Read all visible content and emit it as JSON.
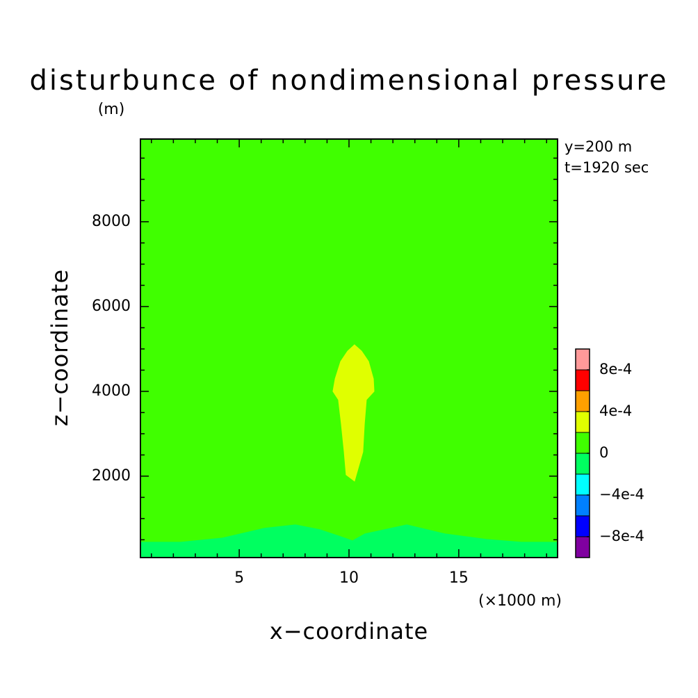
{
  "chart_data": {
    "type": "contour",
    "title": "disturbunce of nondimensional pressure",
    "y_unit": "(m)",
    "x_unit": "(×1000 m)",
    "xlabel": "x−coordinate",
    "ylabel": "z−coordinate",
    "annotations": [
      "y=200 m",
      "t=1920 sec"
    ],
    "xlim": [
      0.5,
      19.5
    ],
    "ylim": [
      80,
      9950
    ],
    "xticks": [
      5,
      10,
      15
    ],
    "yticks": [
      2000,
      4000,
      6000,
      8000
    ],
    "xminor_ticks": [
      1,
      2,
      3,
      4,
      6,
      7,
      8,
      9,
      11,
      12,
      13,
      14,
      16,
      17,
      18,
      19
    ],
    "yminor_ticks": [
      500,
      1000,
      1500,
      2500,
      3000,
      3500,
      4500,
      5000,
      5500,
      6500,
      7000,
      7500,
      8500,
      9000,
      9500
    ],
    "regions": [
      {
        "color": "#40ff00",
        "x": [
          0.5,
          19.5,
          19.5,
          0.5
        ],
        "z": [
          80,
          80,
          9950,
          9950
        ]
      },
      {
        "color": "#00ff60",
        "x": [
          0.5,
          2.34,
          4.24,
          6.14,
          7.56,
          8.67,
          9.62,
          10.16,
          10.73,
          12.63,
          14.37,
          16.27,
          17.85,
          19.5,
          19.5,
          0.5
        ],
        "z": [
          443,
          443,
          541,
          770,
          852,
          738,
          574,
          475,
          639,
          852,
          639,
          508,
          443,
          443,
          80,
          80
        ]
      },
      {
        "color": "#e0ff00",
        "x": [
          10.25,
          10.57,
          10.89,
          11.11,
          11.14,
          10.79,
          10.7,
          10.63,
          10.25,
          9.87,
          9.78,
          9.65,
          9.52,
          9.27,
          9.37,
          9.62,
          9.94
        ],
        "z": [
          5098,
          4951,
          4705,
          4295,
          4000,
          3803,
          3230,
          2574,
          1885,
          2033,
          2574,
          3230,
          3803,
          4000,
          4295,
          4705,
          4951
        ]
      }
    ],
    "colorbar": {
      "levels": [
        -0.001,
        -0.0008,
        -0.0006,
        -0.0004,
        -0.0002,
        0,
        0.0002,
        0.0004,
        0.0006,
        0.0008,
        0.001
      ],
      "colors": [
        "#8000a0",
        "#0000ff",
        "#0080ff",
        "#00ffff",
        "#00ff60",
        "#40ff00",
        "#e0ff00",
        "#ffa000",
        "#ff0000",
        "#ff9999"
      ],
      "ticks": [
        {
          "value": 0.0008,
          "label": "8e-4"
        },
        {
          "value": 0.0004,
          "label": "4e-4"
        },
        0,
        {
          "value": -0.0004,
          "label": "−4e-4"
        },
        {
          "value": -0.0008,
          "label": "−8e-4"
        }
      ]
    }
  }
}
